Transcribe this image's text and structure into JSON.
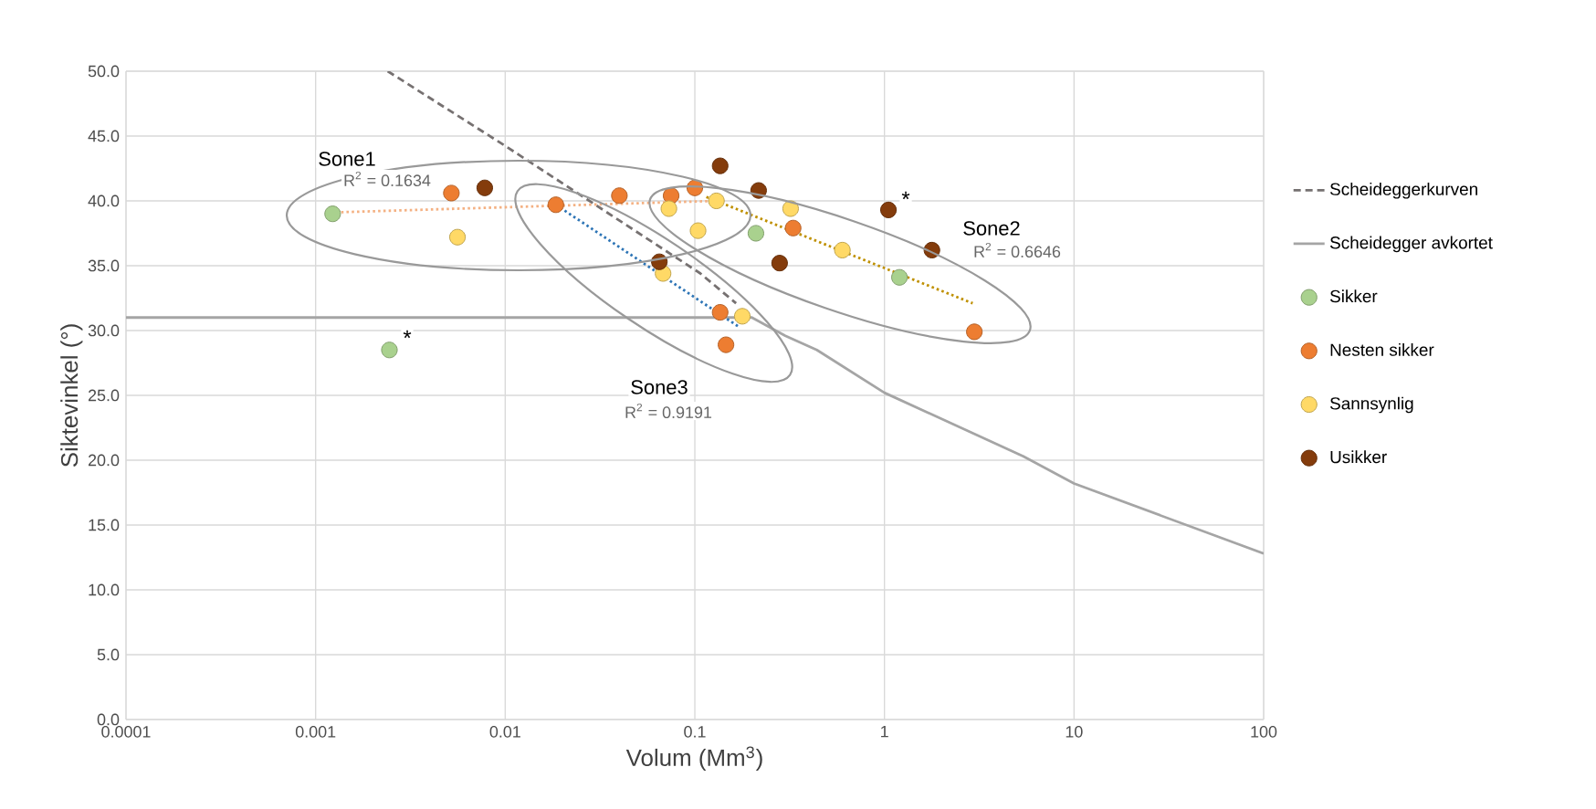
{
  "chart_data": {
    "type": "scatter",
    "xlabel": "Volum (Mm$^{3}$)",
    "ylabel": "Siktevinkel (°)",
    "log": "x",
    "grid": true,
    "legend": "right",
    "xlim": [
      0.0001,
      100
    ],
    "ylim": [
      0,
      50
    ],
    "xticks": [
      0.0001,
      0.001,
      0.01,
      0.1,
      1,
      10,
      100
    ],
    "yticks": [
      {
        "value": 0,
        "label": "0.0"
      },
      {
        "value": 5,
        "label": "5.0"
      },
      {
        "value": 10,
        "label": "10.0"
      },
      {
        "value": 15,
        "label": "15.0"
      },
      {
        "value": 20,
        "label": "20.0"
      },
      {
        "value": 25,
        "label": "25.0"
      },
      {
        "value": 30,
        "label": "30.0"
      },
      {
        "value": 35,
        "label": "35.0"
      },
      {
        "value": 40,
        "label": "40.0"
      },
      {
        "value": 45,
        "label": "45.0"
      },
      {
        "value": 50,
        "label": "50.0"
      }
    ],
    "series": [
      {
        "name": "Scheideggerkurven",
        "type": "line",
        "marker": "none",
        "line_style": "dashed",
        "color": "#767171",
        "x": [
          0.0024,
          0.0101,
          0.107,
          0.165
        ],
        "values": [
          50,
          44.2,
          34.4,
          32.1
        ]
      },
      {
        "name": "Scheidegger avkortet",
        "type": "line",
        "marker": "none",
        "line_style": "solid",
        "color": "#a5a5a5",
        "x": [
          0.0001,
          0.2,
          0.3,
          0.44,
          1,
          5.4,
          10,
          100
        ],
        "values": [
          31,
          31,
          29.6,
          28.5,
          25.2,
          20.3,
          18.2,
          12.8
        ]
      },
      {
        "type": "line",
        "marker": "none",
        "line_style": "dotted",
        "color": "#f4b183",
        "x": [
          0.0012,
          0.13
        ],
        "values": [
          39.1,
          40.0
        ]
      },
      {
        "type": "line",
        "marker": "none",
        "line_style": "dotted",
        "color": "#bf9000",
        "x": [
          0.115,
          2.92
        ],
        "values": [
          40.3,
          32.1
        ]
      },
      {
        "type": "line",
        "marker": "none",
        "line_style": "dotted",
        "color": "#2e75b6",
        "x": [
          0.0185,
          0.17
        ],
        "values": [
          39.7,
          30.3
        ]
      },
      {
        "name": "Sikker",
        "marker": "circle",
        "color": "#a9d18e",
        "x": [
          0.00123,
          0.00245,
          0.21,
          1.2
        ],
        "values": [
          39.0,
          28.5,
          37.5,
          34.1
        ]
      },
      {
        "name": "Nesten sikker",
        "marker": "circle",
        "color": "#ed7d31",
        "x": [
          0.0052,
          0.0185,
          0.04,
          0.075,
          0.1,
          0.33,
          0.136,
          0.146,
          2.98
        ],
        "values": [
          40.6,
          39.7,
          40.4,
          40.4,
          41.0,
          37.9,
          31.4,
          28.9,
          29.9
        ]
      },
      {
        "name": "Sannsynlig",
        "marker": "circle",
        "color": "#ffd966",
        "x": [
          0.0056,
          0.073,
          0.13,
          0.104,
          0.32,
          0.6,
          0.068,
          0.178
        ],
        "values": [
          37.2,
          39.4,
          40.0,
          37.7,
          39.4,
          36.2,
          34.4,
          31.1
        ]
      },
      {
        "name": "Usikker",
        "marker": "circle",
        "color": "#843c0c",
        "x": [
          0.0078,
          0.136,
          0.217,
          1.05,
          1.78,
          0.28,
          0.065
        ],
        "values": [
          41.0,
          42.7,
          40.8,
          39.3,
          36.2,
          35.2,
          35.3
        ]
      }
    ],
    "annotations": [
      "Sone1",
      "R$^{2}$ = 0.1634",
      "Sone2",
      "R$^{2}$ = 0.6646",
      "Sone3",
      "R$^{2}$ = 0.9191",
      "*",
      "*"
    ]
  }
}
